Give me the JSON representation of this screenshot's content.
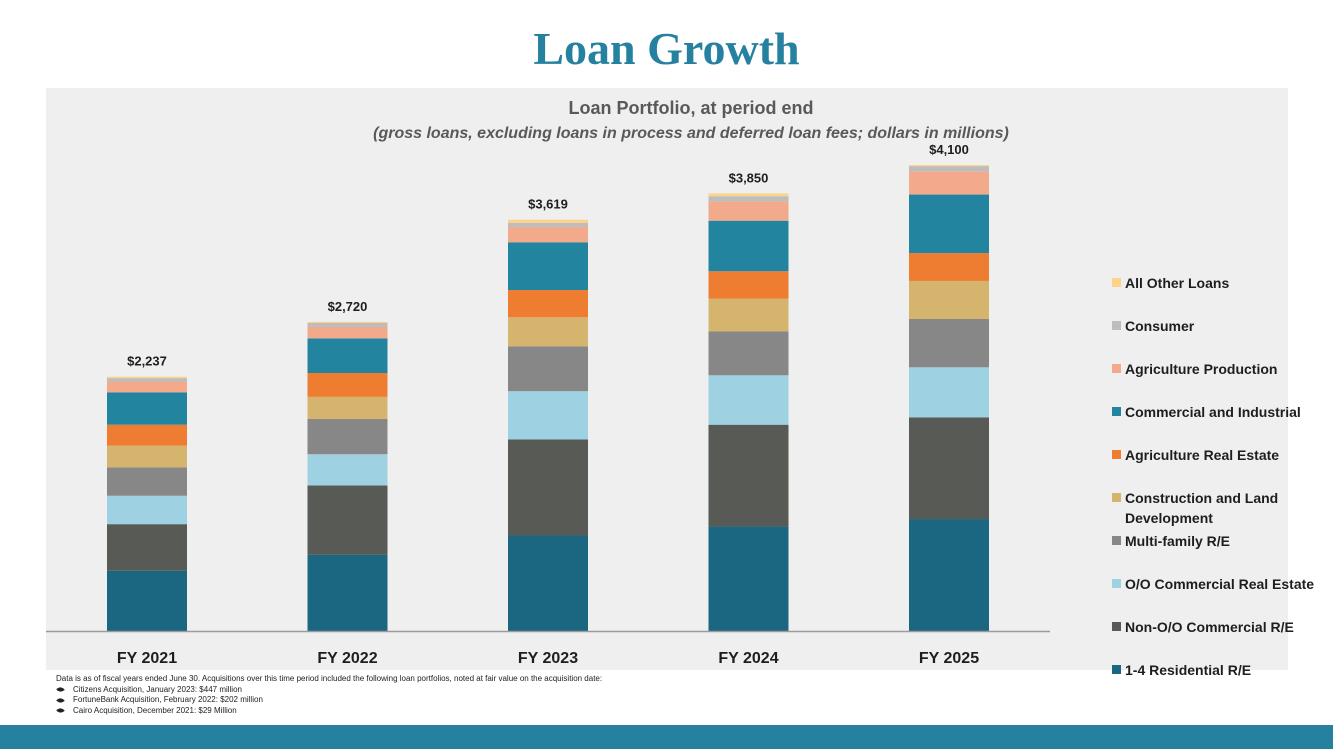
{
  "page_title": "Loan Growth",
  "chart_data": {
    "type": "bar",
    "stacked": true,
    "title": "Loan Portfolio, at period end",
    "subtitle": "(gross loans, excluding loans in process and deferred loan fees; dollars in millions)",
    "xlabel": "",
    "ylabel": "",
    "ylim": [
      0,
      4100
    ],
    "grid": false,
    "legend_position": "right",
    "categories": [
      "FY 2021",
      "FY 2022",
      "FY 2023",
      "FY 2024",
      "FY 2025"
    ],
    "totals": [
      2237,
      2720,
      3619,
      3850,
      4100
    ],
    "total_labels": [
      "$2,237",
      "$2,720",
      "$3,619",
      "$3,850",
      "$4,100"
    ],
    "series": [
      {
        "name": "1-4 Residential R/E",
        "color": "#1b6781",
        "values": [
          530,
          670,
          840,
          920,
          985
        ]
      },
      {
        "name": "Non-O/O Commercial R/E",
        "color": "#575a55",
        "values": [
          410,
          610,
          845,
          895,
          895
        ]
      },
      {
        "name": "O/O Commercial Real Estate",
        "color": "#9ed1e2",
        "values": [
          250,
          275,
          425,
          435,
          440
        ]
      },
      {
        "name": "Multi-family R/E",
        "color": "#878787",
        "values": [
          250,
          310,
          395,
          385,
          425
        ]
      },
      {
        "name": "Construction and Land Development",
        "color": "#d5b46d",
        "values": [
          190,
          195,
          255,
          290,
          335
        ]
      },
      {
        "name": "Agriculture Real Estate",
        "color": "#ee7d31",
        "values": [
          185,
          210,
          240,
          240,
          245
        ]
      },
      {
        "name": "Commercial and Industrial",
        "color": "#2384a0",
        "values": [
          285,
          305,
          420,
          445,
          515
        ]
      },
      {
        "name": "Agriculture Production",
        "color": "#f2a98c",
        "values": [
          95,
          100,
          135,
          170,
          205
        ]
      },
      {
        "name": "Consumer",
        "color": "#bdbdbd",
        "values": [
          30,
          35,
          35,
          45,
          45
        ]
      },
      {
        "name": "All Other Loans",
        "color": "#fbd38b",
        "values": [
          12,
          10,
          29,
          25,
          10
        ]
      }
    ],
    "legend_order": [
      "All Other Loans",
      "Consumer",
      "Agriculture Production",
      "Commercial and Industrial",
      "Agriculture Real Estate",
      "Construction and Land Development",
      "Multi-family R/E",
      "O/O Commercial Real Estate",
      "Non-O/O Commercial R/E",
      "1-4 Residential R/E"
    ]
  },
  "footnote": {
    "intro": "Data is as of fiscal years ended June 30. Acquisitions over this time period included the following loan portfolios, noted at fair value on the acquisition date:",
    "items": [
      "Citizens Acquisition, January 2023: $447 million",
      "FortuneBank Acquisition, February 2022: $202 million",
      "Cairo Acquisition, December 2021: $29 Million"
    ]
  }
}
